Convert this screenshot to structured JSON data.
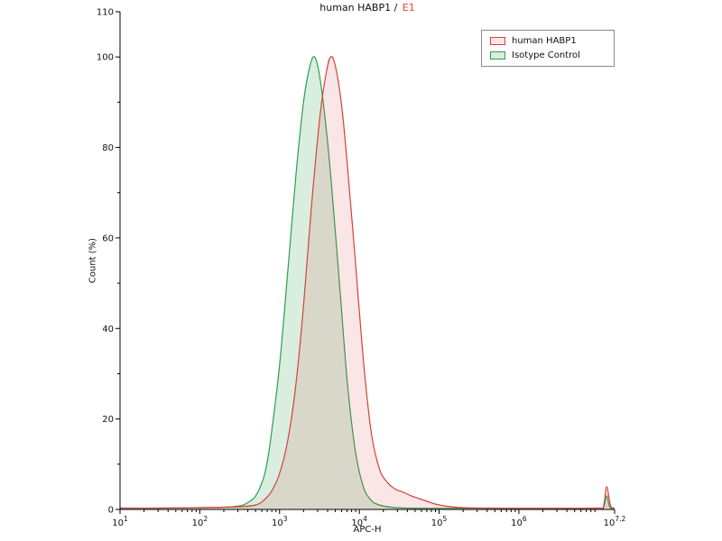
{
  "title": {
    "main": "human HABP1 /",
    "sample": "E1"
  },
  "colors": {
    "accent": "#e8432d",
    "axis": "#000000",
    "background": "#ffffff"
  },
  "chart_data": {
    "type": "area",
    "title": "human HABP1 / E1",
    "xlabel": "APC-H",
    "ylabel": "Count  (%)",
    "x_scale": "log10",
    "xlim_log": [
      1,
      7.2
    ],
    "ylim": [
      0,
      110
    ],
    "grid": false,
    "legend_position": "top-right",
    "x_major_ticks": [
      {
        "log": 1,
        "exp": "1"
      },
      {
        "log": 2,
        "exp": "2"
      },
      {
        "log": 3,
        "exp": "3"
      },
      {
        "log": 4,
        "exp": "4"
      },
      {
        "log": 5,
        "exp": "5"
      },
      {
        "log": 6,
        "exp": "6"
      },
      {
        "log": 7.2,
        "exp": "7.2"
      }
    ],
    "y_major_ticks": [
      0,
      20,
      40,
      60,
      80,
      100,
      110
    ],
    "y_minor_ticks": [
      10,
      30,
      50,
      70,
      90
    ],
    "legend": [
      {
        "label": "human HABP1",
        "color": "#d6403c",
        "fill": "rgba(214,64,60,0.13)"
      },
      {
        "label": "Isotype Control",
        "color": "#2e9e4f",
        "fill": "rgba(46,158,79,0.18)"
      }
    ],
    "series": [
      {
        "name": "Isotype Control",
        "color": "#2e9e4f",
        "fill": "rgba(46,158,79,0.18)",
        "points": [
          [
            1.0,
            0.3
          ],
          [
            1.5,
            0.3
          ],
          [
            2.0,
            0.4
          ],
          [
            2.3,
            0.5
          ],
          [
            2.5,
            0.8
          ],
          [
            2.6,
            1.5
          ],
          [
            2.7,
            3
          ],
          [
            2.8,
            7
          ],
          [
            2.85,
            11
          ],
          [
            2.9,
            17
          ],
          [
            3.0,
            32
          ],
          [
            3.1,
            52
          ],
          [
            3.2,
            73
          ],
          [
            3.3,
            90
          ],
          [
            3.38,
            98
          ],
          [
            3.44,
            100
          ],
          [
            3.5,
            96
          ],
          [
            3.58,
            85
          ],
          [
            3.65,
            72
          ],
          [
            3.75,
            50
          ],
          [
            3.85,
            28
          ],
          [
            3.95,
            13
          ],
          [
            4.05,
            5
          ],
          [
            4.15,
            2
          ],
          [
            4.25,
            1
          ],
          [
            4.4,
            0.5
          ],
          [
            4.6,
            0.3
          ],
          [
            5.0,
            0.25
          ],
          [
            5.5,
            0.25
          ],
          [
            6.0,
            0.25
          ],
          [
            6.5,
            0.25
          ],
          [
            7.0,
            0.3
          ],
          [
            7.06,
            0.4
          ],
          [
            7.1,
            3
          ],
          [
            7.14,
            0.5
          ],
          [
            7.2,
            0.3
          ]
        ]
      },
      {
        "name": "human HABP1",
        "color": "#d6403c",
        "fill": "rgba(214,64,60,0.13)",
        "points": [
          [
            1.0,
            0.3
          ],
          [
            1.5,
            0.3
          ],
          [
            2.0,
            0.4
          ],
          [
            2.5,
            0.6
          ],
          [
            2.7,
            1
          ],
          [
            2.8,
            2
          ],
          [
            2.9,
            4
          ],
          [
            3.0,
            8
          ],
          [
            3.1,
            15
          ],
          [
            3.2,
            27
          ],
          [
            3.3,
            45
          ],
          [
            3.4,
            67
          ],
          [
            3.5,
            86
          ],
          [
            3.58,
            96
          ],
          [
            3.64,
            100
          ],
          [
            3.7,
            98
          ],
          [
            3.78,
            89
          ],
          [
            3.85,
            76
          ],
          [
            3.95,
            55
          ],
          [
            4.05,
            33
          ],
          [
            4.15,
            17
          ],
          [
            4.25,
            9
          ],
          [
            4.35,
            6
          ],
          [
            4.45,
            4.5
          ],
          [
            4.55,
            3.8
          ],
          [
            4.65,
            3
          ],
          [
            4.75,
            2.4
          ],
          [
            4.85,
            1.8
          ],
          [
            4.95,
            1.2
          ],
          [
            5.1,
            0.7
          ],
          [
            5.3,
            0.4
          ],
          [
            5.6,
            0.3
          ],
          [
            6.0,
            0.25
          ],
          [
            6.5,
            0.25
          ],
          [
            7.0,
            0.3
          ],
          [
            7.06,
            0.6
          ],
          [
            7.1,
            5
          ],
          [
            7.15,
            0.8
          ],
          [
            7.2,
            0.3
          ]
        ]
      }
    ]
  }
}
